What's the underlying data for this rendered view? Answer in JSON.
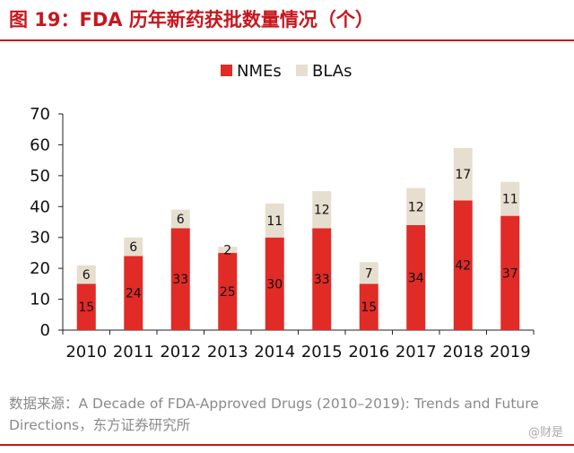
{
  "colors": {
    "accent": "#c8161d",
    "nmes": "#e02b27",
    "blas": "#e6dfd0",
    "axis": "#222222"
  },
  "header": {
    "title": "图 19：FDA 历年新药获批数量情况（个）"
  },
  "chart_data": {
    "type": "bar",
    "stacked": true,
    "title": "",
    "xlabel": "",
    "ylabel": "",
    "categories": [
      "2010",
      "2011",
      "2012",
      "2013",
      "2014",
      "2015",
      "2016",
      "2017",
      "2018",
      "2019"
    ],
    "series": [
      {
        "name": "NMEs",
        "values": [
          15,
          24,
          33,
          25,
          30,
          33,
          15,
          34,
          42,
          37
        ]
      },
      {
        "name": "BLAs",
        "values": [
          6,
          6,
          6,
          2,
          11,
          12,
          7,
          12,
          17,
          11
        ]
      }
    ],
    "ylim": [
      0,
      70
    ],
    "yticks": [
      0,
      10,
      20,
      30,
      40,
      50,
      60,
      70
    ],
    "grid": false,
    "legend": "top-center"
  },
  "footer": {
    "source": "数据来源：A Decade of FDA-Approved Drugs (2010–2019): Trends and Future Directions，东方证券研究所",
    "watermark": "@财是"
  }
}
